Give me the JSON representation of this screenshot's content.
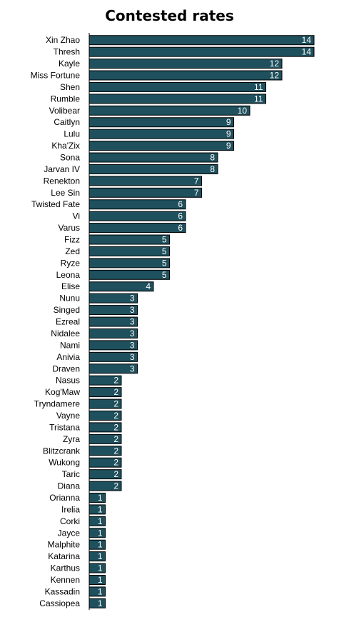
{
  "chart_data": {
    "type": "bar",
    "orientation": "horizontal",
    "title": "Contested rates",
    "xlabel": "",
    "ylabel": "",
    "grid": false,
    "legend": "none",
    "bar_color": "#1e505d",
    "bar_border_color": "#000000",
    "value_label_color": "#ffffff",
    "categories": [
      "Xin Zhao",
      "Thresh",
      "Kayle",
      "Miss Fortune",
      "Shen",
      "Rumble",
      "Volibear",
      "Caitlyn",
      "Lulu",
      "Kha'Zix",
      "Sona",
      "Jarvan IV",
      "Renekton",
      "Lee Sin",
      "Twisted Fate",
      "Vi",
      "Varus",
      "Fizz",
      "Zed",
      "Ryze",
      "Leona",
      "Elise",
      "Nunu",
      "Singed",
      "Ezreal",
      "Nidalee",
      "Nami",
      "Anivia",
      "Draven",
      "Nasus",
      "Kog'Maw",
      "Tryndamere",
      "Vayne",
      "Tristana",
      "Zyra",
      "Blitzcrank",
      "Wukong",
      "Taric",
      "Diana",
      "Orianna",
      "Irelia",
      "Corki",
      "Jayce",
      "Malphite",
      "Katarina",
      "Karthus",
      "Kennen",
      "Kassadin",
      "Cassiopea"
    ],
    "values": [
      14,
      14,
      12,
      12,
      11,
      11,
      10,
      9,
      9,
      9,
      8,
      8,
      7,
      7,
      6,
      6,
      6,
      5,
      5,
      5,
      5,
      4,
      3,
      3,
      3,
      3,
      3,
      3,
      3,
      2,
      2,
      2,
      2,
      2,
      2,
      2,
      2,
      2,
      2,
      1,
      1,
      1,
      1,
      1,
      1,
      1,
      1,
      1,
      1
    ],
    "xlim": [
      0,
      14
    ]
  }
}
